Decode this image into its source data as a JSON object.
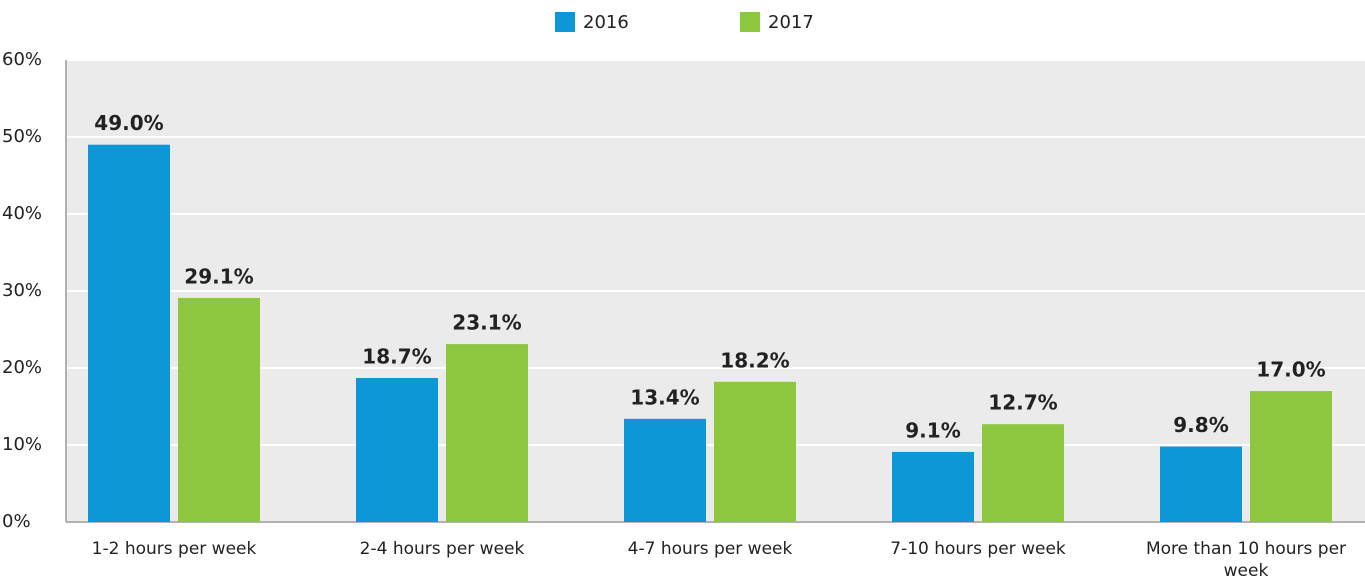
{
  "chart_data": {
    "type": "bar",
    "categories": [
      "1-2 hours per week",
      "2-4 hours per week",
      "4-7 hours per week",
      "7-10 hours per week",
      "More than 10 hours per week"
    ],
    "series": [
      {
        "name": "2016",
        "color": "#0e97d6",
        "values": [
          49.0,
          18.7,
          13.4,
          9.1,
          9.8
        ],
        "value_labels": [
          "49.0%",
          "18.7%",
          "13.4%",
          "9.1%",
          "9.8%"
        ]
      },
      {
        "name": "2017",
        "color": "#8dc63f",
        "values": [
          29.1,
          23.1,
          18.2,
          12.7,
          17.0
        ],
        "value_labels": [
          "29.1%",
          "23.1%",
          "18.2%",
          "12.7%",
          "17.0%"
        ]
      }
    ],
    "ylim": [
      0,
      60
    ],
    "yticks": [
      {
        "value": 0,
        "label": "0%"
      },
      {
        "value": 10,
        "label": "10%"
      },
      {
        "value": 20,
        "label": "20%"
      },
      {
        "value": 30,
        "label": "30%"
      },
      {
        "value": 40,
        "label": "40%"
      },
      {
        "value": 50,
        "label": "50%"
      },
      {
        "value": 60,
        "label": "60%"
      }
    ],
    "grid": true
  }
}
